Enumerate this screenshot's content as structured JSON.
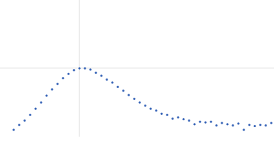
{
  "chart_data": {
    "type": "scatter",
    "color": "#3a66b8",
    "grid": true,
    "xlim": [
      0,
      6
    ],
    "ylim": [
      0,
      2.2
    ],
    "xticks": [
      1.732
    ],
    "yticks": [
      1.104
    ],
    "x": [
      0.3,
      0.42,
      0.54,
      0.66,
      0.78,
      0.9,
      1.02,
      1.14,
      1.26,
      1.38,
      1.5,
      1.62,
      1.74,
      1.86,
      1.98,
      2.1,
      2.22,
      2.34,
      2.46,
      2.58,
      2.7,
      2.82,
      2.94,
      3.06,
      3.18,
      3.3,
      3.42,
      3.54,
      3.66,
      3.78,
      3.9,
      4.02,
      4.14,
      4.26,
      4.38,
      4.5,
      4.62,
      4.74,
      4.86,
      4.98,
      5.1,
      5.22,
      5.34,
      5.46,
      5.58,
      5.7,
      5.82,
      5.94
    ],
    "values": [
      0.11,
      0.19,
      0.26,
      0.35,
      0.45,
      0.55,
      0.66,
      0.76,
      0.85,
      0.94,
      1.01,
      1.07,
      1.1,
      1.1,
      1.08,
      1.03,
      0.98,
      0.92,
      0.87,
      0.8,
      0.74,
      0.67,
      0.61,
      0.55,
      0.5,
      0.45,
      0.42,
      0.37,
      0.35,
      0.29,
      0.31,
      0.28,
      0.26,
      0.2,
      0.24,
      0.23,
      0.24,
      0.18,
      0.22,
      0.2,
      0.18,
      0.21,
      0.11,
      0.19,
      0.17,
      0.19,
      0.18,
      0.22
    ]
  }
}
